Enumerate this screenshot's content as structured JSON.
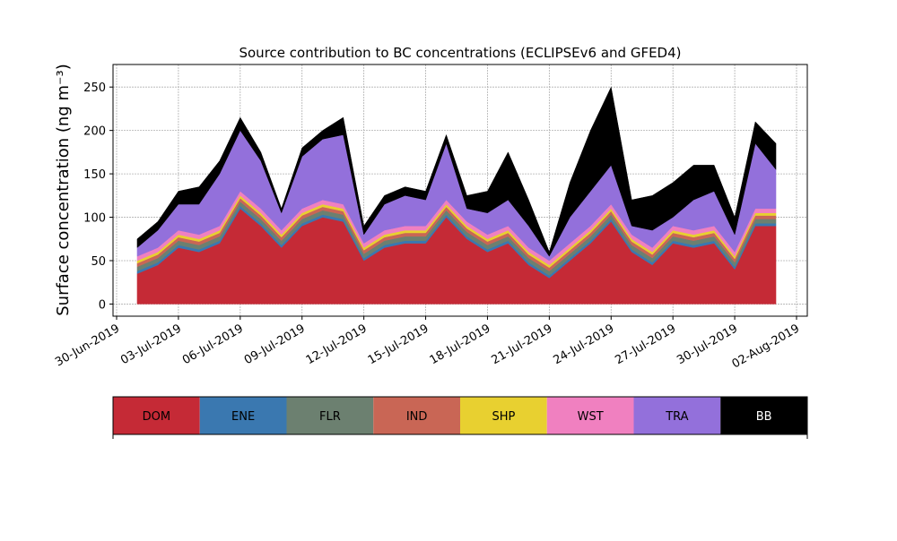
{
  "chart_data": {
    "type": "stacked_area",
    "title": "Source contribution to BC concentrations (ECLIPSEv6 and GFED4)",
    "y_label": "Surface concentration (ng m⁻³)",
    "x": [
      "2019-07-01",
      "2019-07-02",
      "2019-07-03",
      "2019-07-04",
      "2019-07-05",
      "2019-07-06",
      "2019-07-07",
      "2019-07-08",
      "2019-07-09",
      "2019-07-10",
      "2019-07-11",
      "2019-07-12",
      "2019-07-13",
      "2019-07-14",
      "2019-07-15",
      "2019-07-16",
      "2019-07-17",
      "2019-07-18",
      "2019-07-19",
      "2019-07-20",
      "2019-07-21",
      "2019-07-22",
      "2019-07-23",
      "2019-07-24",
      "2019-07-25",
      "2019-07-26",
      "2019-07-27",
      "2019-07-28",
      "2019-07-29",
      "2019-07-30",
      "2019-07-31",
      "2019-08-01"
    ],
    "series": [
      {
        "name": "DOM",
        "color": "#c52a36",
        "values": [
          35,
          45,
          65,
          60,
          70,
          110,
          90,
          65,
          90,
          100,
          95,
          50,
          65,
          70,
          70,
          100,
          75,
          60,
          70,
          45,
          30,
          50,
          70,
          95,
          60,
          45,
          70,
          65,
          70,
          40,
          90,
          90
        ]
      },
      {
        "name": "ENE",
        "color": "#3a78b0",
        "values": [
          3,
          3,
          3,
          3,
          3,
          3,
          3,
          3,
          3,
          3,
          3,
          3,
          3,
          3,
          3,
          3,
          3,
          3,
          3,
          3,
          3,
          3,
          3,
          3,
          3,
          3,
          3,
          3,
          3,
          3,
          3,
          3
        ]
      },
      {
        "name": "FLR",
        "color": "#6c8070",
        "values": [
          5,
          5,
          5,
          5,
          5,
          5,
          5,
          5,
          5,
          5,
          5,
          5,
          5,
          5,
          5,
          5,
          5,
          5,
          5,
          5,
          5,
          5,
          5,
          5,
          5,
          5,
          5,
          5,
          5,
          5,
          5,
          5
        ]
      },
      {
        "name": "IND",
        "color": "#c96655",
        "values": [
          4,
          4,
          4,
          4,
          4,
          4,
          4,
          4,
          4,
          4,
          4,
          4,
          4,
          4,
          4,
          4,
          4,
          4,
          4,
          4,
          4,
          4,
          4,
          4,
          4,
          4,
          4,
          4,
          4,
          4,
          4,
          4
        ]
      },
      {
        "name": "SHP",
        "color": "#e8d030",
        "values": [
          3,
          3,
          3,
          3,
          3,
          3,
          3,
          3,
          3,
          3,
          3,
          3,
          3,
          3,
          3,
          3,
          3,
          3,
          3,
          3,
          3,
          3,
          3,
          3,
          3,
          3,
          3,
          3,
          3,
          3,
          3,
          3
        ]
      },
      {
        "name": "WST",
        "color": "#f080c0",
        "values": [
          5,
          5,
          5,
          5,
          5,
          5,
          5,
          5,
          5,
          5,
          5,
          5,
          5,
          5,
          5,
          5,
          5,
          5,
          5,
          5,
          5,
          5,
          5,
          5,
          5,
          5,
          5,
          5,
          5,
          5,
          5,
          5
        ]
      },
      {
        "name": "TRA",
        "color": "#9370db",
        "values": [
          10,
          20,
          30,
          35,
          60,
          70,
          55,
          20,
          60,
          70,
          80,
          10,
          30,
          35,
          30,
          65,
          15,
          25,
          30,
          25,
          5,
          30,
          40,
          45,
          10,
          20,
          10,
          35,
          40,
          20,
          75,
          45
        ]
      },
      {
        "name": "BB",
        "color": "#000000",
        "values": [
          10,
          10,
          15,
          20,
          15,
          15,
          10,
          5,
          10,
          10,
          20,
          10,
          10,
          10,
          10,
          10,
          15,
          25,
          55,
          30,
          5,
          40,
          70,
          90,
          30,
          40,
          40,
          40,
          30,
          20,
          25,
          30
        ]
      }
    ],
    "xlim": [
      "2019-06-30",
      "2019-08-02"
    ],
    "xticks": [
      {
        "value": "2019-06-30",
        "label": "30-Jun-2019"
      },
      {
        "value": "2019-07-03",
        "label": "03-Jul-2019"
      },
      {
        "value": "2019-07-06",
        "label": "06-Jul-2019"
      },
      {
        "value": "2019-07-09",
        "label": "09-Jul-2019"
      },
      {
        "value": "2019-07-12",
        "label": "12-Jul-2019"
      },
      {
        "value": "2019-07-15",
        "label": "15-Jul-2019"
      },
      {
        "value": "2019-07-18",
        "label": "18-Jul-2019"
      },
      {
        "value": "2019-07-21",
        "label": "21-Jul-2019"
      },
      {
        "value": "2019-07-24",
        "label": "24-Jul-2019"
      },
      {
        "value": "2019-07-27",
        "label": "27-Jul-2019"
      },
      {
        "value": "2019-07-30",
        "label": "30-Jul-2019"
      },
      {
        "value": "2019-08-02",
        "label": "02-Aug-2019"
      }
    ],
    "ylim": [
      -14,
      276
    ],
    "yticks": [
      0,
      50,
      100,
      150,
      200,
      250
    ],
    "grid": true
  }
}
